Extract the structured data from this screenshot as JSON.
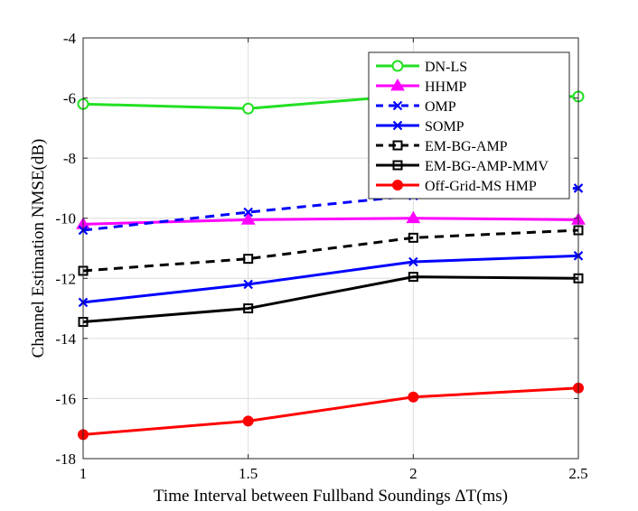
{
  "chart_data": {
    "type": "line",
    "xlabel": "Time Interval between Fullband Soundings ΔT(ms)",
    "ylabel": "Channel Estimation NMSE(dB)",
    "xlim": [
      1,
      2.5
    ],
    "ylim": [
      -18,
      -4
    ],
    "xticks": [
      1,
      1.5,
      2,
      2.5
    ],
    "xtick_labels": [
      "1",
      "1.5",
      "2",
      "2.5"
    ],
    "yticks": [
      -18,
      -16,
      -14,
      -12,
      -10,
      -8,
      -6,
      -4
    ],
    "ytick_labels": [
      "-18",
      "-16",
      "-14",
      "-12",
      "-10",
      "-8",
      "-6",
      "-4"
    ],
    "grid": true,
    "legend_position": "top-right",
    "x": [
      1,
      1.5,
      2,
      2.5
    ],
    "series": [
      {
        "name": "DN-LS",
        "values": [
          -6.2,
          -6.35,
          -5.9,
          -5.95
        ],
        "color": "#22e022",
        "dash": "solid",
        "marker": "circle-open"
      },
      {
        "name": "HHMP",
        "values": [
          -10.2,
          -10.05,
          -10.0,
          -10.05
        ],
        "color": "#ff00ff",
        "dash": "solid",
        "marker": "triangle-filled"
      },
      {
        "name": "OMP",
        "values": [
          -10.4,
          -9.8,
          -9.25,
          -9.0
        ],
        "color": "#0000ff",
        "dash": "dashed",
        "marker": "x"
      },
      {
        "name": "SOMP",
        "values": [
          -12.8,
          -12.2,
          -11.45,
          -11.25
        ],
        "color": "#0000ff",
        "dash": "solid",
        "marker": "x"
      },
      {
        "name": "EM-BG-AMP",
        "values": [
          -11.75,
          -11.35,
          -10.65,
          -10.4
        ],
        "color": "#000000",
        "dash": "dashed",
        "marker": "square-open"
      },
      {
        "name": "EM-BG-AMP-MMV",
        "values": [
          -13.45,
          -13.0,
          -11.95,
          -12.0
        ],
        "color": "#000000",
        "dash": "solid",
        "marker": "square-open"
      },
      {
        "name": "Off-Grid-MS HMP",
        "values": [
          -17.2,
          -16.75,
          -15.95,
          -15.65
        ],
        "color": "#ff0000",
        "dash": "solid",
        "marker": "circle-filled"
      }
    ]
  }
}
